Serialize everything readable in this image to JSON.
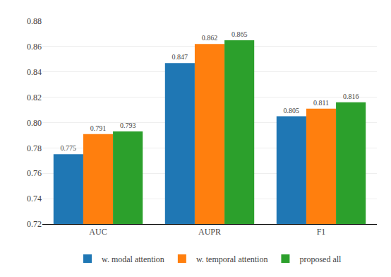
{
  "chart_data": {
    "type": "bar",
    "categories": [
      "AUC",
      "AUPR",
      "F1"
    ],
    "series": [
      {
        "name": "w. modal attention",
        "values": [
          0.775,
          0.847,
          0.805
        ]
      },
      {
        "name": "w. temporal attention",
        "values": [
          0.791,
          0.862,
          0.811
        ]
      },
      {
        "name": "proposed all",
        "values": [
          0.793,
          0.865,
          0.816
        ]
      }
    ],
    "ylim": [
      0.72,
      0.88
    ],
    "yticks": [
      0.72,
      0.74,
      0.76,
      0.78,
      {
        "value": 0.8,
        "label": "0.80"
      },
      0.82,
      0.84,
      0.86,
      0.88
    ],
    "grid": true,
    "legend": "bottom",
    "data_labels": true
  }
}
